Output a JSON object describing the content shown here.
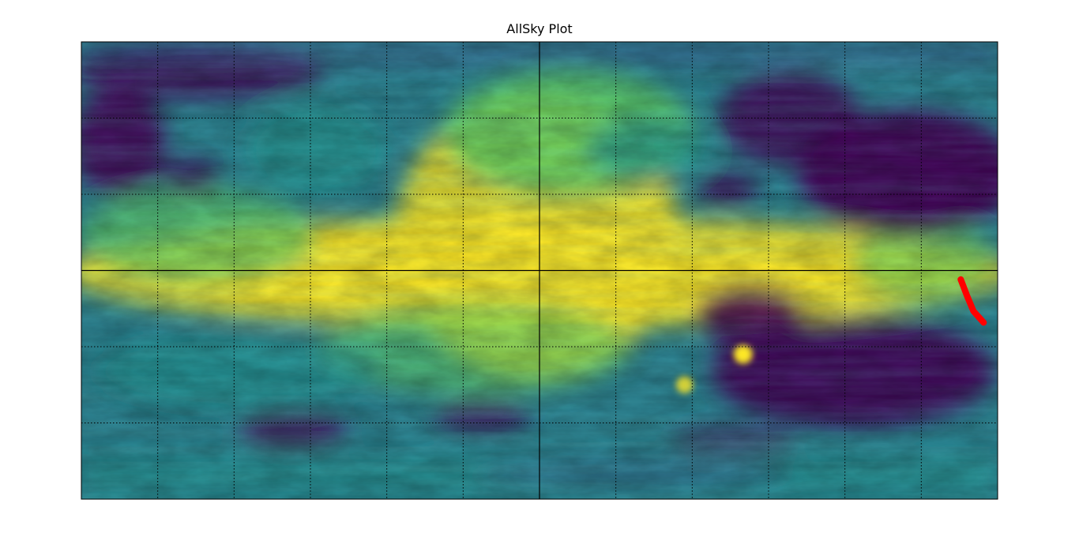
{
  "chart_data": {
    "type": "heatmap",
    "title": "AllSky Plot",
    "projection": "plate-carree",
    "xlim": [
      -180,
      180
    ],
    "ylim": [
      -90,
      90
    ],
    "grid": true,
    "grid_style": "dotted",
    "meridians": [
      -150,
      -120,
      -90,
      -60,
      -30,
      0,
      30,
      60,
      90,
      120,
      150
    ],
    "parallels": [
      -60,
      -30,
      0,
      30,
      60
    ],
    "equator_line": true,
    "central_meridian_line": true,
    "colormap": "viridis",
    "colormap_stops": [
      "#440154",
      "#3b528b",
      "#21918c",
      "#5ec962",
      "#fde725"
    ],
    "bright_features": [
      {
        "lon": 80,
        "lat": -33,
        "intensity": 1.0,
        "label": ""
      },
      {
        "lon": 57,
        "lat": -45,
        "intensity": 0.8,
        "label": ""
      }
    ],
    "overlay_track": {
      "color": "#ff0000",
      "points": [
        {
          "lon": 165.5,
          "lat": -3.5
        },
        {
          "lon": 168.0,
          "lat": -10.0
        },
        {
          "lon": 170.5,
          "lat": -16.0
        },
        {
          "lon": 174.5,
          "lat": -20.5
        }
      ]
    }
  }
}
